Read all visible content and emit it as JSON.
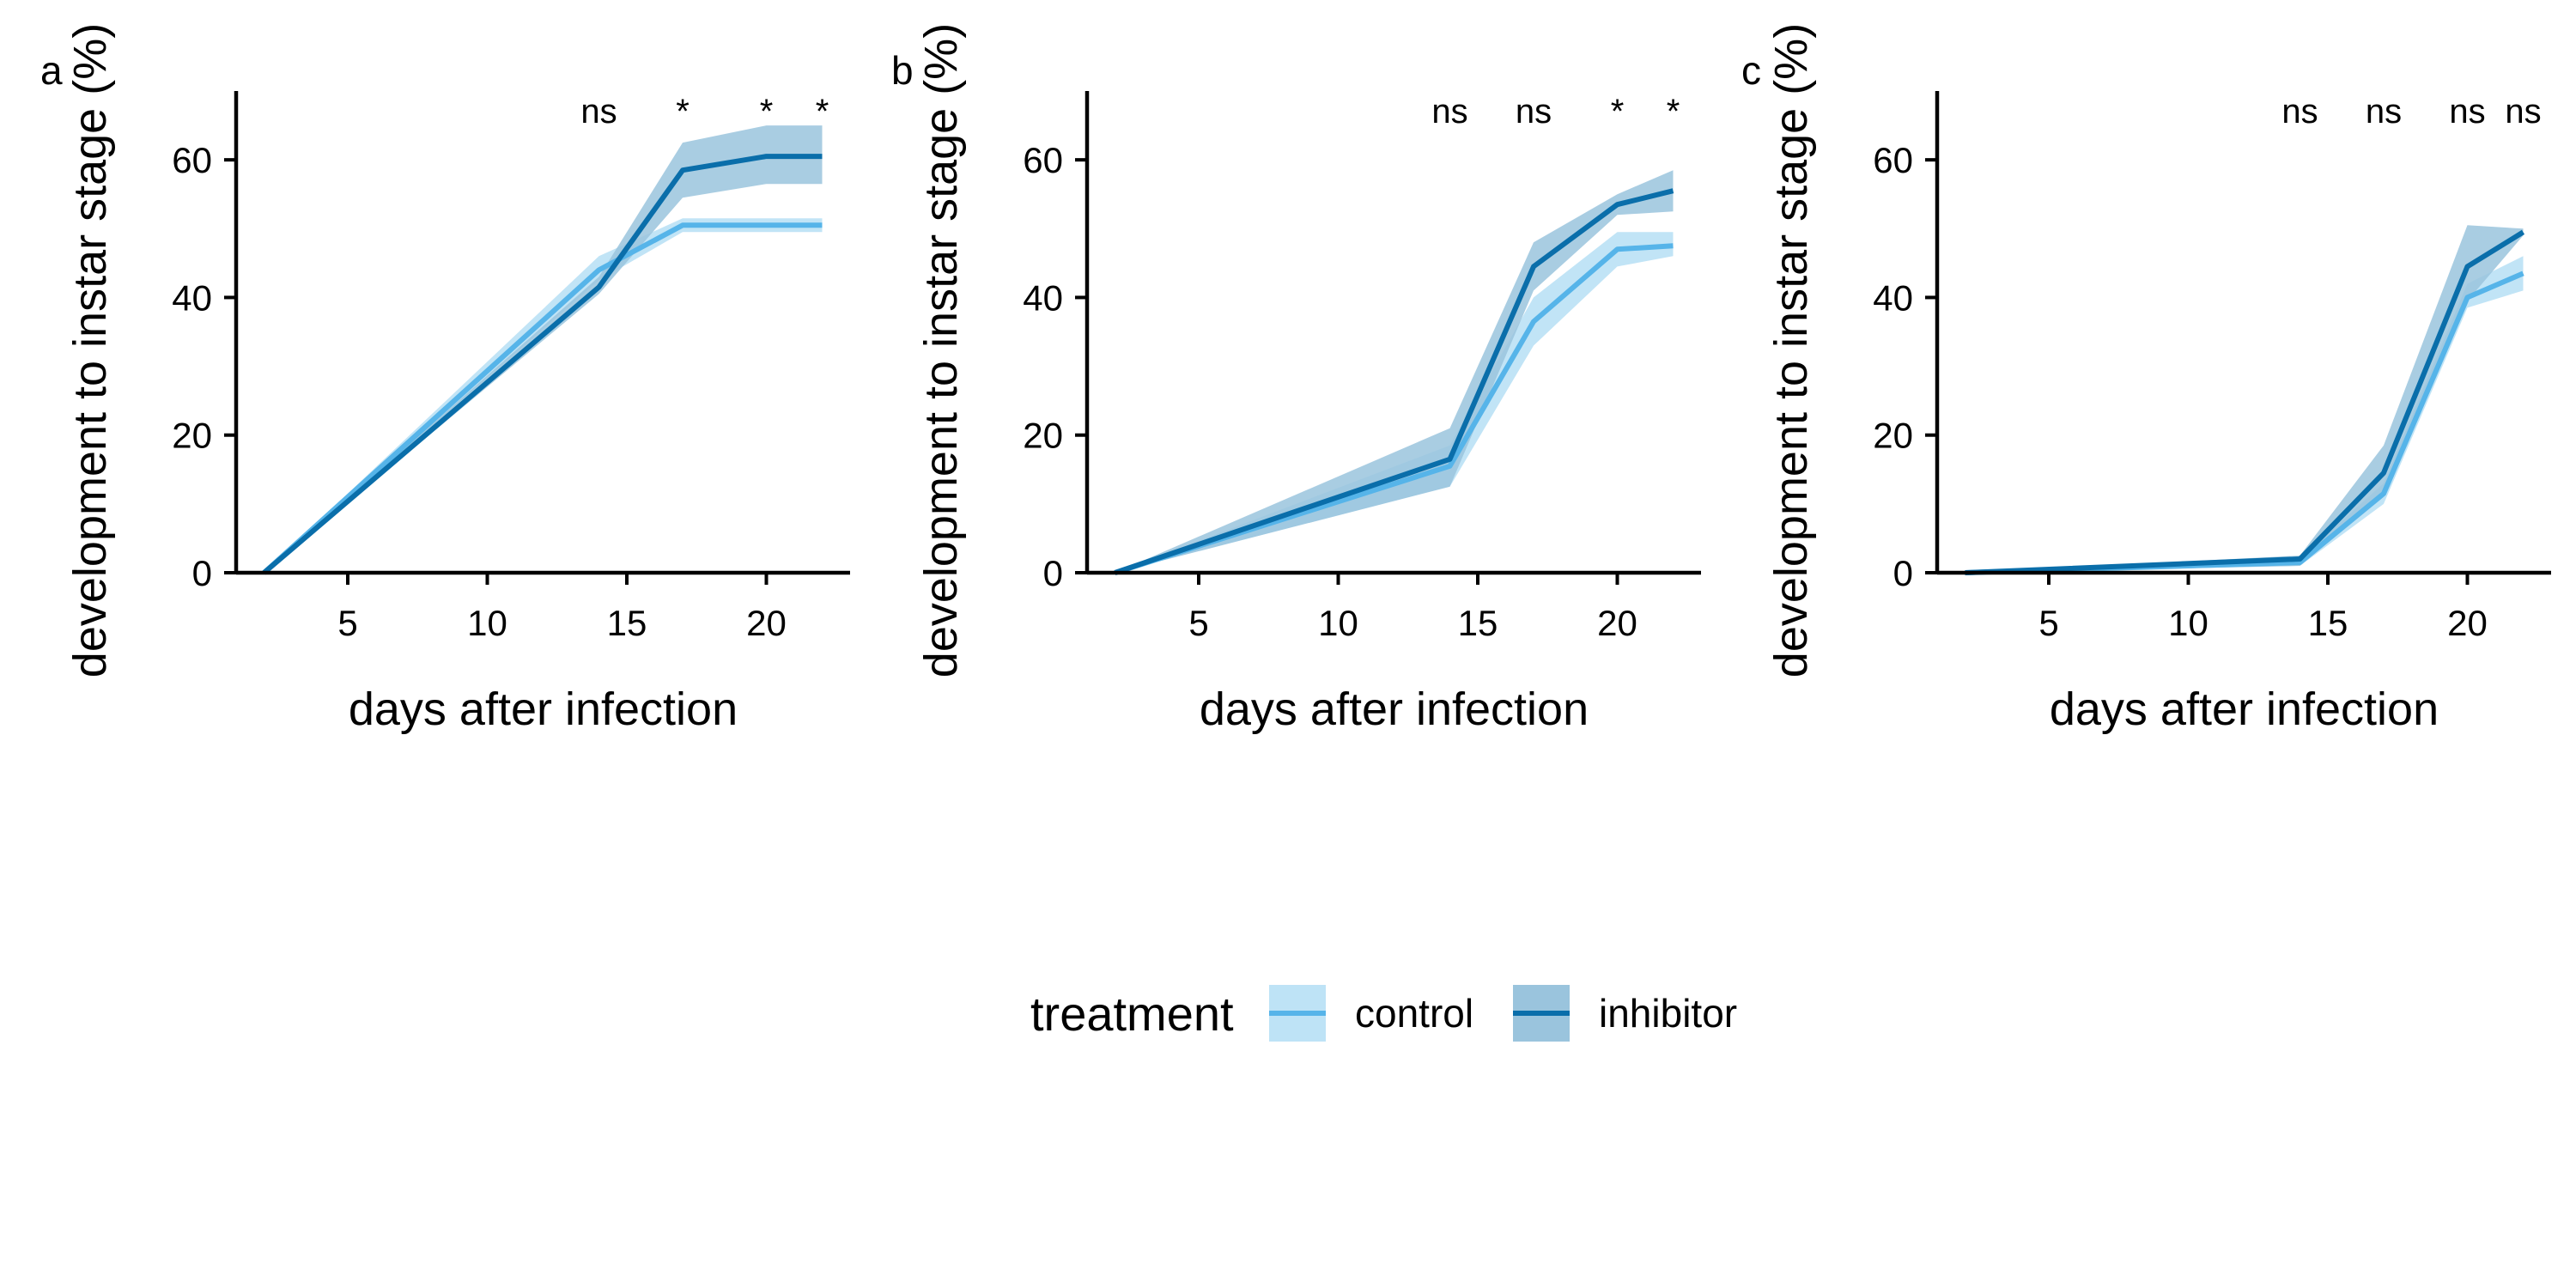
{
  "colors": {
    "control_line": "#56B4E9",
    "control_ribbon": "#BEE3F6",
    "inhibitor_line": "#0A6EAA",
    "inhibitor_ribbon": "#9AC4DD"
  },
  "legend": {
    "title": "treatment",
    "items": [
      "control",
      "inhibitor"
    ]
  },
  "chart_data": [
    {
      "type": "line",
      "panel_label": "a",
      "xlabel": "days after infection",
      "ylabel": "development to instar stage (%)",
      "xlim": [
        1,
        23
      ],
      "ylim": [
        0,
        70
      ],
      "x_ticks": [
        5,
        10,
        15,
        20
      ],
      "y_ticks": [
        0,
        20,
        40,
        60
      ],
      "x": [
        2,
        14,
        17,
        20,
        22
      ],
      "series": [
        {
          "name": "control",
          "values": [
            0,
            44,
            50.5,
            50.5,
            50.5
          ],
          "lower": [
            0,
            42.5,
            49.5,
            49.5,
            49.5
          ],
          "upper": [
            0,
            46,
            51.5,
            51.5,
            51.5
          ]
        },
        {
          "name": "inhibitor",
          "values": [
            0,
            41.5,
            58.5,
            60.5,
            60.5
          ],
          "lower": [
            0,
            40.5,
            54.5,
            56.5,
            56.5
          ],
          "upper": [
            0,
            43,
            62.5,
            65,
            65
          ]
        }
      ],
      "significance": [
        {
          "x": 14,
          "label": "ns"
        },
        {
          "x": 17,
          "label": "*"
        },
        {
          "x": 20,
          "label": "*"
        },
        {
          "x": 22,
          "label": "*"
        }
      ]
    },
    {
      "type": "line",
      "panel_label": "b",
      "xlabel": "days after infection",
      "ylabel": "development to instar stage (%)",
      "xlim": [
        1,
        23
      ],
      "ylim": [
        0,
        70
      ],
      "x_ticks": [
        5,
        10,
        15,
        20
      ],
      "y_ticks": [
        0,
        20,
        40,
        60
      ],
      "x": [
        2,
        14,
        17,
        20,
        22
      ],
      "series": [
        {
          "name": "control",
          "values": [
            0,
            15.5,
            36.5,
            47,
            47.5
          ],
          "lower": [
            0,
            12.5,
            33,
            44.5,
            46
          ],
          "upper": [
            0,
            18.5,
            40,
            49.5,
            49.5
          ]
        },
        {
          "name": "inhibitor",
          "values": [
            0,
            16.5,
            44.5,
            53.5,
            55.5
          ],
          "lower": [
            0,
            12.5,
            41,
            52,
            52.5
          ],
          "upper": [
            0,
            21,
            48,
            55,
            58.5
          ]
        }
      ],
      "significance": [
        {
          "x": 14,
          "label": "ns"
        },
        {
          "x": 17,
          "label": "ns"
        },
        {
          "x": 20,
          "label": "*"
        },
        {
          "x": 22,
          "label": "*"
        }
      ]
    },
    {
      "type": "line",
      "panel_label": "c",
      "xlabel": "days after infection",
      "ylabel": "development to instar stage (%)",
      "xlim": [
        1,
        23
      ],
      "ylim": [
        0,
        70
      ],
      "x_ticks": [
        5,
        10,
        15,
        20
      ],
      "y_ticks": [
        0,
        20,
        40,
        60
      ],
      "x": [
        2,
        14,
        17,
        20,
        22
      ],
      "series": [
        {
          "name": "control",
          "values": [
            0,
            1.5,
            11.5,
            40,
            43.5
          ],
          "lower": [
            0,
            1,
            10,
            38.5,
            41
          ],
          "upper": [
            0,
            2,
            13,
            42,
            46
          ]
        },
        {
          "name": "inhibitor",
          "values": [
            0,
            2,
            14.5,
            44.5,
            49.5
          ],
          "lower": [
            0,
            1,
            11,
            39.5,
            49
          ],
          "upper": [
            0,
            2.5,
            18.5,
            50.5,
            50
          ]
        }
      ],
      "significance": [
        {
          "x": 14,
          "label": "ns"
        },
        {
          "x": 17,
          "label": "ns"
        },
        {
          "x": 20,
          "label": "ns"
        },
        {
          "x": 22,
          "label": "ns"
        }
      ]
    }
  ]
}
